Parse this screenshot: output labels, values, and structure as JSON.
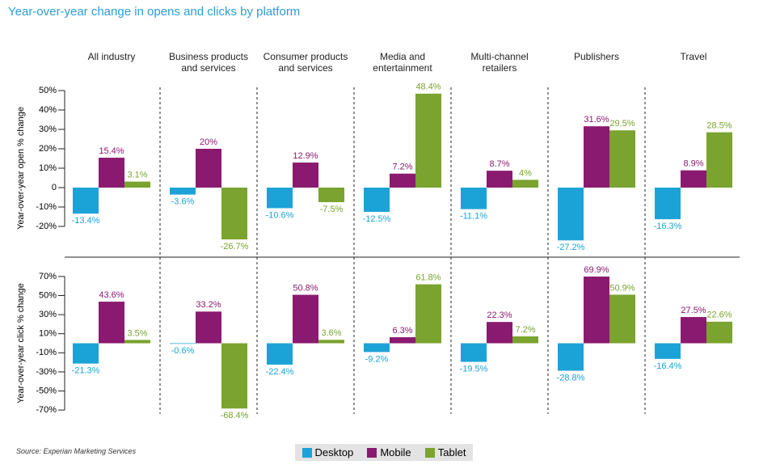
{
  "chart_data": [
    {
      "type": "bar",
      "title": "Year-over-year change in opens and clicks by platform",
      "source": "Source: Experian Marketing Services",
      "categories": [
        "All industry",
        "Business products\nand services",
        "Consumer products\nand services",
        "Media and\nentertainment",
        "Multi-channel\nretailers",
        "Publishers",
        "Travel"
      ],
      "ylabel": "Year-over-year open % change",
      "ylim": [
        -32,
        52
      ],
      "yticks": [
        {
          "value": 50,
          "label": "50%"
        },
        {
          "value": 40,
          "label": "40%"
        },
        {
          "value": 30,
          "label": "30%"
        },
        {
          "value": 20,
          "label": "20%"
        },
        {
          "value": 10,
          "label": "10%"
        },
        0,
        {
          "value": -10,
          "label": "-10%"
        },
        {
          "value": -20,
          "label": "-20%"
        }
      ],
      "series": [
        {
          "name": "Desktop",
          "color": "#1ba3d8",
          "values": [
            -13.4,
            -3.6,
            -10.6,
            -12.5,
            -11.1,
            -27.2,
            -16.3
          ],
          "value_labels": [
            "-13.4%",
            "-3.6%",
            "-10.6%",
            "-12.5%",
            "-11.1%",
            "-27.2%",
            "-16.3%"
          ]
        },
        {
          "name": "Mobile",
          "color": "#8a1a6f",
          "values": [
            15.4,
            20,
            12.9,
            7.2,
            8.7,
            31.6,
            8.9
          ],
          "value_labels": [
            "15.4%",
            "20%",
            "12.9%",
            "7.2%",
            "8.7%",
            "31.6%",
            "8.9%"
          ]
        },
        {
          "name": "Tablet",
          "color": "#7aa32f",
          "values": [
            3.1,
            -26.7,
            -7.5,
            48.4,
            4,
            29.5,
            28.5
          ],
          "value_labels": [
            "3.1%",
            "-26.7%",
            "-7.5%",
            "48.4%",
            "4%",
            "29.5%",
            "28.5%"
          ]
        }
      ]
    },
    {
      "type": "bar",
      "ylabel": "Year-over-year click % change",
      "ylim": [
        -75,
        75
      ],
      "yticks": [
        {
          "value": 70,
          "label": "70%"
        },
        {
          "value": 50,
          "label": "50%"
        },
        {
          "value": 30,
          "label": "30%"
        },
        {
          "value": 10,
          "label": "10%"
        },
        {
          "value": -10,
          "label": "-10%"
        },
        {
          "value": -30,
          "label": "-30%"
        },
        {
          "value": -50,
          "label": "-50%"
        },
        {
          "value": -70,
          "label": "-70%"
        }
      ],
      "series": [
        {
          "color": "#1ba3d8",
          "values": [
            -21.3,
            -0.6,
            -22.4,
            -9.2,
            -19.5,
            -28.8,
            -16.4
          ],
          "value_labels": [
            "-21.3%",
            "-0.6%",
            "-22.4%",
            "-9.2%",
            "-19.5%",
            "-28.8%",
            "-16.4%"
          ]
        },
        {
          "color": "#8a1a6f",
          "values": [
            43.6,
            33.2,
            50.8,
            6.3,
            22.3,
            69.9,
            27.5
          ],
          "value_labels": [
            "43.6%",
            "33.2%",
            "50.8%",
            "6.3%",
            "22.3%",
            "69.9%",
            "27.5%"
          ]
        },
        {
          "color": "#7aa32f",
          "values": [
            3.5,
            -68.4,
            3.6,
            61.8,
            7.2,
            50.9,
            22.6
          ],
          "value_labels": [
            "3.5%",
            "-68.4%",
            "3.6%",
            "61.8%",
            "7.2%",
            "50.9%",
            "22.6%"
          ]
        }
      ]
    }
  ]
}
